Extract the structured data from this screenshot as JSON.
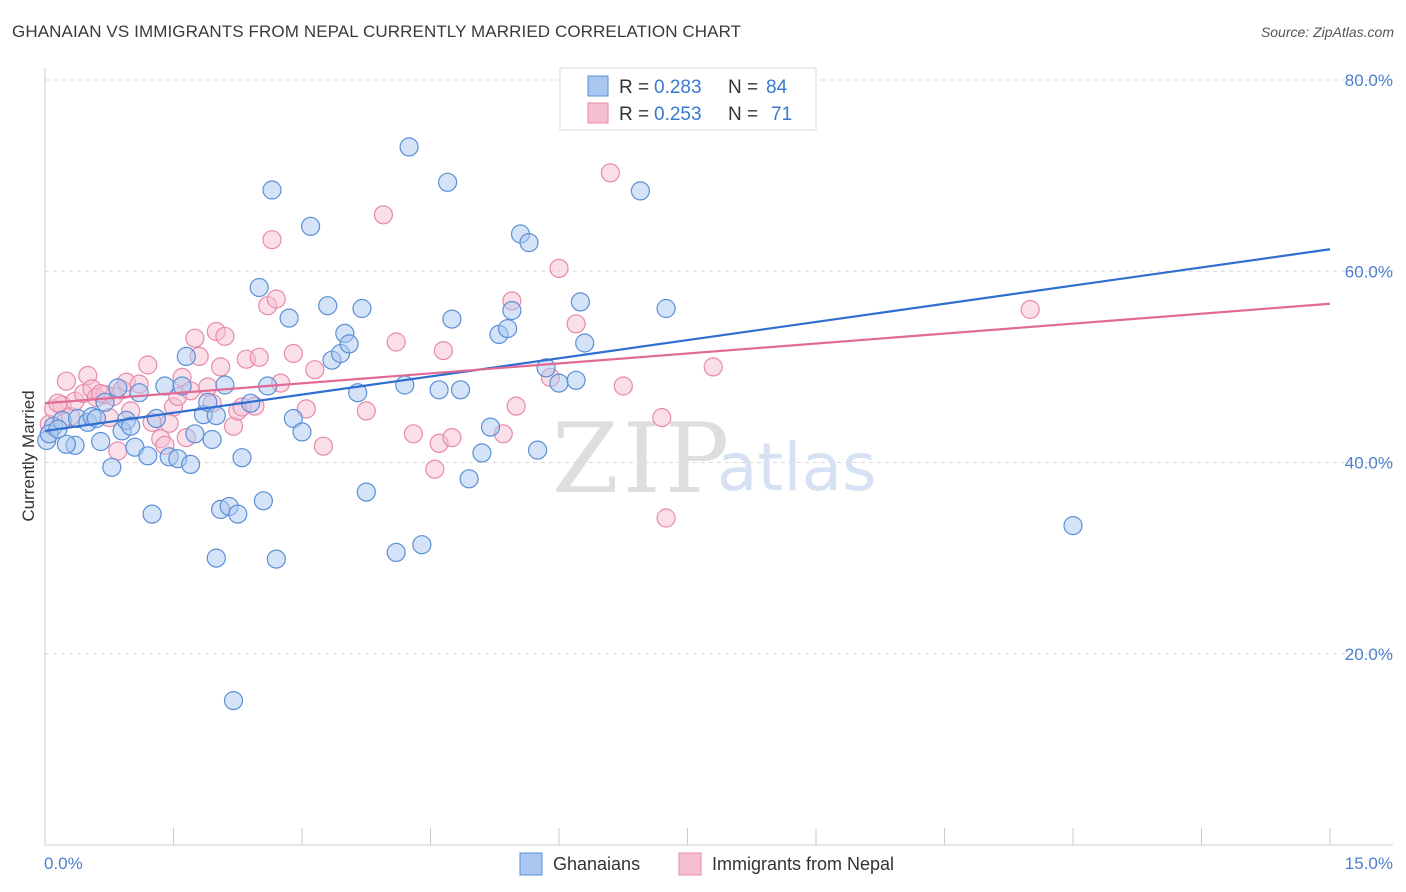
{
  "header": {
    "title": "GHANAIAN VS IMMIGRANTS FROM NEPAL CURRENTLY MARRIED CORRELATION CHART",
    "source": "Source: ZipAtlas.com"
  },
  "watermark": {
    "zip": "ZIP",
    "atlas": "atlas"
  },
  "legend_top": [
    {
      "r_label": "R = ",
      "r_value": "0.283",
      "n_label": "N = ",
      "n_value": "84"
    },
    {
      "r_label": "R = ",
      "r_value": "0.253",
      "n_label": "N = ",
      "n_value": "71"
    }
  ],
  "legend_bottom": [
    "Ghanaians",
    "Immigrants from Nepal"
  ],
  "colors": {
    "blue_fill": "#a9c7f0",
    "blue_stroke": "#5b8fd6",
    "blue_line": "#2f6fd0",
    "pink_fill": "#f6bfd1",
    "pink_stroke": "#e88aa8",
    "pink_line": "#e06a94",
    "grid": "#d8d8d8",
    "tick_text": "#4a7fcf"
  },
  "chart_data": {
    "type": "scatter",
    "title": "GHANAIAN VS IMMIGRANTS FROM NEPAL CURRENTLY MARRIED CORRELATION CHART",
    "ylabel": "Currently Married",
    "xlabel": "",
    "xlim": [
      0,
      15
    ],
    "ylim": [
      0,
      80
    ],
    "x_tick_labels": [
      "0.0%",
      "15.0%"
    ],
    "y_ticks": [
      20,
      40,
      60,
      80
    ],
    "y_tick_labels": [
      "20.0%",
      "40.0%",
      "60.0%",
      "80.0%"
    ],
    "grid": true,
    "legend_position": "top-center",
    "series": [
      {
        "name": "Ghanaians",
        "r": 0.283,
        "n": 84,
        "trend": [
          [
            0,
            43.3
          ],
          [
            15,
            62.3
          ]
        ],
        "points": [
          [
            0.02,
            42.3
          ],
          [
            0.1,
            43.8
          ],
          [
            0.2,
            44.4
          ],
          [
            0.35,
            41.8
          ],
          [
            0.38,
            44.6
          ],
          [
            0.5,
            44.2
          ],
          [
            0.55,
            44.8
          ],
          [
            0.6,
            44.6
          ],
          [
            0.65,
            42.2
          ],
          [
            0.7,
            46.3
          ],
          [
            0.78,
            39.5
          ],
          [
            0.85,
            47.8
          ],
          [
            0.9,
            43.3
          ],
          [
            0.95,
            44.4
          ],
          [
            1.05,
            41.6
          ],
          [
            1.1,
            47.3
          ],
          [
            1.2,
            40.7
          ],
          [
            1.25,
            34.6
          ],
          [
            1.3,
            44.6
          ],
          [
            1.4,
            48.0
          ],
          [
            1.45,
            40.6
          ],
          [
            1.55,
            40.4
          ],
          [
            1.6,
            48.0
          ],
          [
            1.65,
            51.1
          ],
          [
            1.7,
            39.8
          ],
          [
            1.75,
            43.0
          ],
          [
            1.85,
            45.0
          ],
          [
            1.9,
            46.3
          ],
          [
            1.95,
            42.4
          ],
          [
            2.0,
            30.0
          ],
          [
            2.05,
            35.1
          ],
          [
            2.1,
            48.1
          ],
          [
            2.15,
            35.4
          ],
          [
            2.2,
            15.1
          ],
          [
            2.25,
            34.6
          ],
          [
            2.3,
            40.5
          ],
          [
            2.4,
            46.2
          ],
          [
            2.5,
            58.3
          ],
          [
            2.55,
            36.0
          ],
          [
            2.6,
            48.0
          ],
          [
            2.65,
            68.5
          ],
          [
            2.7,
            29.9
          ],
          [
            2.85,
            55.1
          ],
          [
            2.9,
            44.6
          ],
          [
            3.0,
            43.2
          ],
          [
            3.1,
            64.7
          ],
          [
            3.3,
            56.4
          ],
          [
            3.35,
            50.7
          ],
          [
            3.45,
            51.4
          ],
          [
            3.5,
            53.5
          ],
          [
            3.55,
            52.4
          ],
          [
            3.65,
            47.3
          ],
          [
            3.7,
            56.1
          ],
          [
            3.75,
            36.9
          ],
          [
            4.1,
            30.6
          ],
          [
            4.2,
            48.1
          ],
          [
            4.25,
            73.0
          ],
          [
            4.4,
            31.4
          ],
          [
            4.6,
            47.6
          ],
          [
            4.7,
            69.3
          ],
          [
            4.75,
            55.0
          ],
          [
            4.85,
            47.6
          ],
          [
            4.95,
            38.3
          ],
          [
            5.1,
            41.0
          ],
          [
            5.2,
            43.7
          ],
          [
            5.3,
            53.4
          ],
          [
            5.4,
            54.0
          ],
          [
            5.45,
            55.9
          ],
          [
            5.55,
            63.9
          ],
          [
            5.65,
            63.0
          ],
          [
            5.75,
            41.3
          ],
          [
            5.85,
            49.9
          ],
          [
            6.0,
            48.3
          ],
          [
            6.2,
            48.6
          ],
          [
            6.25,
            56.8
          ],
          [
            6.3,
            52.5
          ],
          [
            6.95,
            68.4
          ],
          [
            7.25,
            56.1
          ],
          [
            12.0,
            33.4
          ],
          [
            0.05,
            43.0
          ],
          [
            0.15,
            43.5
          ],
          [
            1.0,
            43.8
          ],
          [
            2.0,
            44.9
          ],
          [
            0.25,
            41.9
          ]
        ]
      },
      {
        "name": "Immigrants from Nepal",
        "r": 0.253,
        "n": 71,
        "trend": [
          [
            0,
            46.2
          ],
          [
            15,
            56.6
          ]
        ],
        "points": [
          [
            0.05,
            44.0
          ],
          [
            0.1,
            45.6
          ],
          [
            0.2,
            46.0
          ],
          [
            0.25,
            48.5
          ],
          [
            0.3,
            44.8
          ],
          [
            0.35,
            46.4
          ],
          [
            0.45,
            47.2
          ],
          [
            0.5,
            49.1
          ],
          [
            0.55,
            47.7
          ],
          [
            0.6,
            46.8
          ],
          [
            0.7,
            47.1
          ],
          [
            0.75,
            44.7
          ],
          [
            0.8,
            46.9
          ],
          [
            0.85,
            41.2
          ],
          [
            0.9,
            47.6
          ],
          [
            0.95,
            48.4
          ],
          [
            1.0,
            45.4
          ],
          [
            1.1,
            48.2
          ],
          [
            1.2,
            50.2
          ],
          [
            1.25,
            44.2
          ],
          [
            1.35,
            42.5
          ],
          [
            1.4,
            41.8
          ],
          [
            1.5,
            45.8
          ],
          [
            1.55,
            46.9
          ],
          [
            1.6,
            48.9
          ],
          [
            1.65,
            42.6
          ],
          [
            1.7,
            47.5
          ],
          [
            1.75,
            53.0
          ],
          [
            1.8,
            51.1
          ],
          [
            1.9,
            47.9
          ],
          [
            1.95,
            46.2
          ],
          [
            2.0,
            53.7
          ],
          [
            2.05,
            50.0
          ],
          [
            2.1,
            53.2
          ],
          [
            2.2,
            43.8
          ],
          [
            2.25,
            45.4
          ],
          [
            2.3,
            45.8
          ],
          [
            2.35,
            50.8
          ],
          [
            2.45,
            45.9
          ],
          [
            2.5,
            51.0
          ],
          [
            2.6,
            56.4
          ],
          [
            2.65,
            63.3
          ],
          [
            2.7,
            57.1
          ],
          [
            2.75,
            48.3
          ],
          [
            2.9,
            51.4
          ],
          [
            3.05,
            45.6
          ],
          [
            3.15,
            49.7
          ],
          [
            3.25,
            41.7
          ],
          [
            3.75,
            45.4
          ],
          [
            3.95,
            65.9
          ],
          [
            4.1,
            52.6
          ],
          [
            4.3,
            43.0
          ],
          [
            4.55,
            39.3
          ],
          [
            4.6,
            42.0
          ],
          [
            4.65,
            51.7
          ],
          [
            4.75,
            42.6
          ],
          [
            5.35,
            43.0
          ],
          [
            5.45,
            56.9
          ],
          [
            5.5,
            45.9
          ],
          [
            5.9,
            48.9
          ],
          [
            6.0,
            60.3
          ],
          [
            6.2,
            54.5
          ],
          [
            6.6,
            70.3
          ],
          [
            6.75,
            48.0
          ],
          [
            7.2,
            44.7
          ],
          [
            7.25,
            34.2
          ],
          [
            7.8,
            50.0
          ],
          [
            11.5,
            56.0
          ],
          [
            0.15,
            46.2
          ],
          [
            1.45,
            44.1
          ],
          [
            0.65,
            47.2
          ]
        ]
      }
    ]
  }
}
